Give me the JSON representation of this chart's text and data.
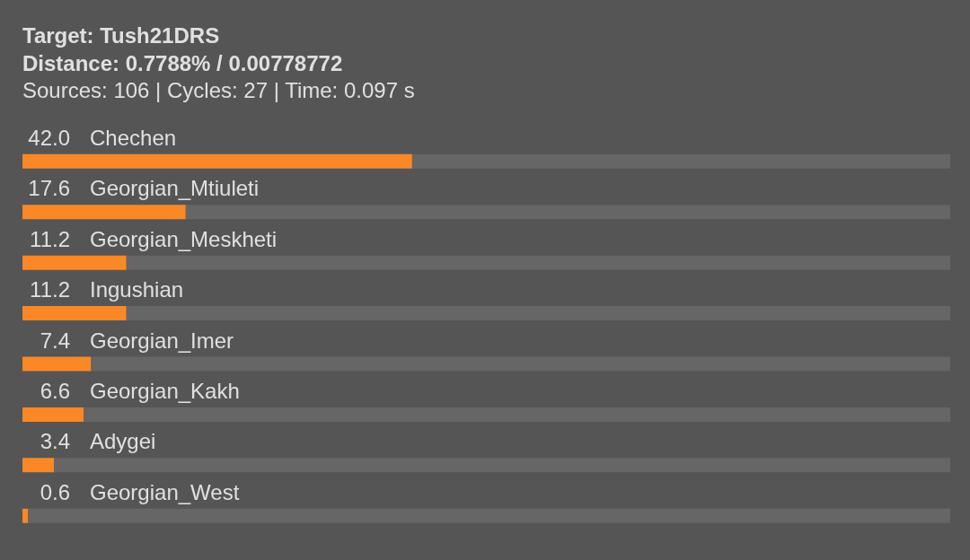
{
  "chart_data": {
    "type": "bar",
    "orientation": "horizontal",
    "stacked": true,
    "title": "Target: Tush21DRS",
    "subtitle": "Distance: 0.7788% / 0.00778772",
    "annotations": [
      "Sources: 106 | Cycles: 27 | Time: 0.097 s"
    ],
    "categories": [
      "Chechen",
      "Georgian_Mtiuleti",
      "Georgian_Meskheti",
      "Ingushian",
      "Georgian_Imer",
      "Georgian_Kakh",
      "Adygei",
      "Georgian_West"
    ],
    "series": [
      {
        "color": "#fb8826",
        "values": [
          42.0,
          17.6,
          11.2,
          11.2,
          7.4,
          6.6,
          3.4,
          0.6
        ],
        "value_labels": [
          "42.0",
          "17.6",
          "11.2",
          "11.2",
          "7.4",
          "6.6",
          "3.4",
          "0.6"
        ]
      },
      {
        "color": "#666666",
        "values": [
          58.0,
          82.4,
          88.8,
          88.8,
          92.6,
          93.4,
          96.6,
          99.4
        ]
      }
    ],
    "xlim": [
      0,
      100
    ],
    "tick_labels": "y",
    "legend": false
  }
}
